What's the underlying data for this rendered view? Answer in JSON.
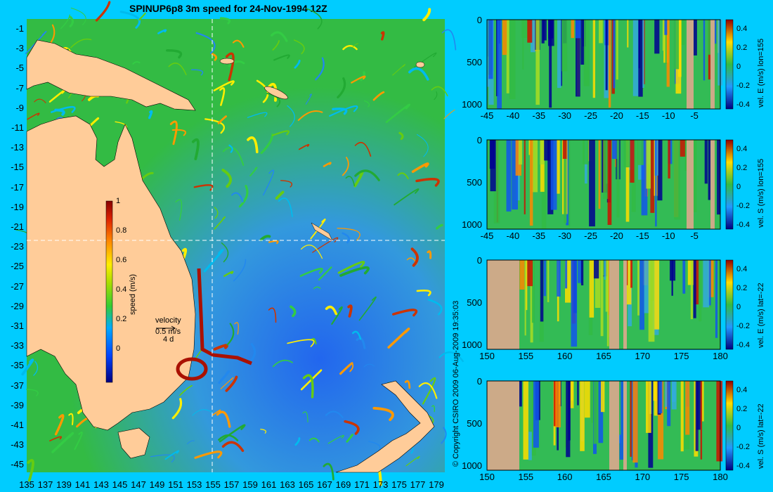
{
  "chart_data": [
    {
      "type": "heatmap",
      "title": "SPINUP6p8 3m speed for 24-Nov-1994 12Z",
      "xlim": [
        135,
        180
      ],
      "ylim": [
        -45,
        0
      ],
      "x_ticks": [
        "135",
        "137",
        "139",
        "141",
        "143",
        "145",
        "147",
        "149",
        "151",
        "153",
        "155",
        "157",
        "159",
        "161",
        "163",
        "165",
        "167",
        "169",
        "171",
        "173",
        "175",
        "177",
        "179"
      ],
      "y_ticks": [
        "-1",
        "-3",
        "-5",
        "-7",
        "-9",
        "-11",
        "-13",
        "-15",
        "-17",
        "-19",
        "-21",
        "-23",
        "-25",
        "-27",
        "-29",
        "-31",
        "-33",
        "-35",
        "-37",
        "-39",
        "-41",
        "-43",
        "-45"
      ],
      "colorbar": {
        "label": "speed (m/s)",
        "ticks": [
          "1",
          "0.8",
          "0.6",
          "0.4",
          "0.2",
          "0"
        ],
        "range": [
          0,
          1
        ]
      },
      "crosshair": {
        "lon": 155,
        "lat": -22
      },
      "velocity_legend": {
        "label": "velocity",
        "scale": "0.5 m/s",
        "age": "4 d"
      },
      "annotation": "© Copyright CSIRO 2009   06-Aug-2009 19:35:03"
    },
    {
      "type": "heatmap",
      "label": "vel. E (m/s) lon=155",
      "x_ticks": [
        "-45",
        "-40",
        "-35",
        "-30",
        "-25",
        "-20",
        "-15",
        "-10",
        "-5"
      ],
      "xlim": [
        -45,
        0
      ],
      "y_ticks": [
        "0",
        "500",
        "1000"
      ],
      "colorbar_ticks": [
        "0.4",
        "0.2",
        "0",
        "-0.2",
        "-0.4"
      ],
      "colorbar_range": [
        -0.4,
        0.4
      ]
    },
    {
      "type": "heatmap",
      "label": "vel. S (m/s) lon=155",
      "x_ticks": [
        "-45",
        "-40",
        "-35",
        "-30",
        "-25",
        "-20",
        "-15",
        "-10",
        "-5"
      ],
      "xlim": [
        -45,
        0
      ],
      "y_ticks": [
        "0",
        "500",
        "1000"
      ],
      "colorbar_ticks": [
        "0.4",
        "0.2",
        "0",
        "-0.2",
        "-0.4"
      ],
      "colorbar_range": [
        -0.4,
        0.4
      ]
    },
    {
      "type": "heatmap",
      "label": "vel. E (m/s) lat=-22",
      "x_ticks": [
        "150",
        "155",
        "160",
        "165",
        "170",
        "175",
        "180"
      ],
      "xlim": [
        150,
        180
      ],
      "y_ticks": [
        "0",
        "500",
        "1000"
      ],
      "colorbar_ticks": [
        "0.4",
        "0.2",
        "0",
        "-0.2",
        "-0.4"
      ],
      "colorbar_range": [
        -0.4,
        0.4
      ]
    },
    {
      "type": "heatmap",
      "label": "vel. S (m/s) lat=-22",
      "x_ticks": [
        "150",
        "155",
        "160",
        "165",
        "170",
        "175",
        "180"
      ],
      "xlim": [
        150,
        180
      ],
      "y_ticks": [
        "0",
        "500",
        "1000"
      ],
      "colorbar_ticks": [
        "0.4",
        "0.2",
        "0",
        "-0.2",
        "-0.4"
      ],
      "colorbar_range": [
        -0.4,
        0.4
      ]
    }
  ],
  "colors": {
    "background": "#00ccff",
    "land": "#ffcc99",
    "land_section": "#ccaa88",
    "ocean_green": "#33bb33"
  }
}
